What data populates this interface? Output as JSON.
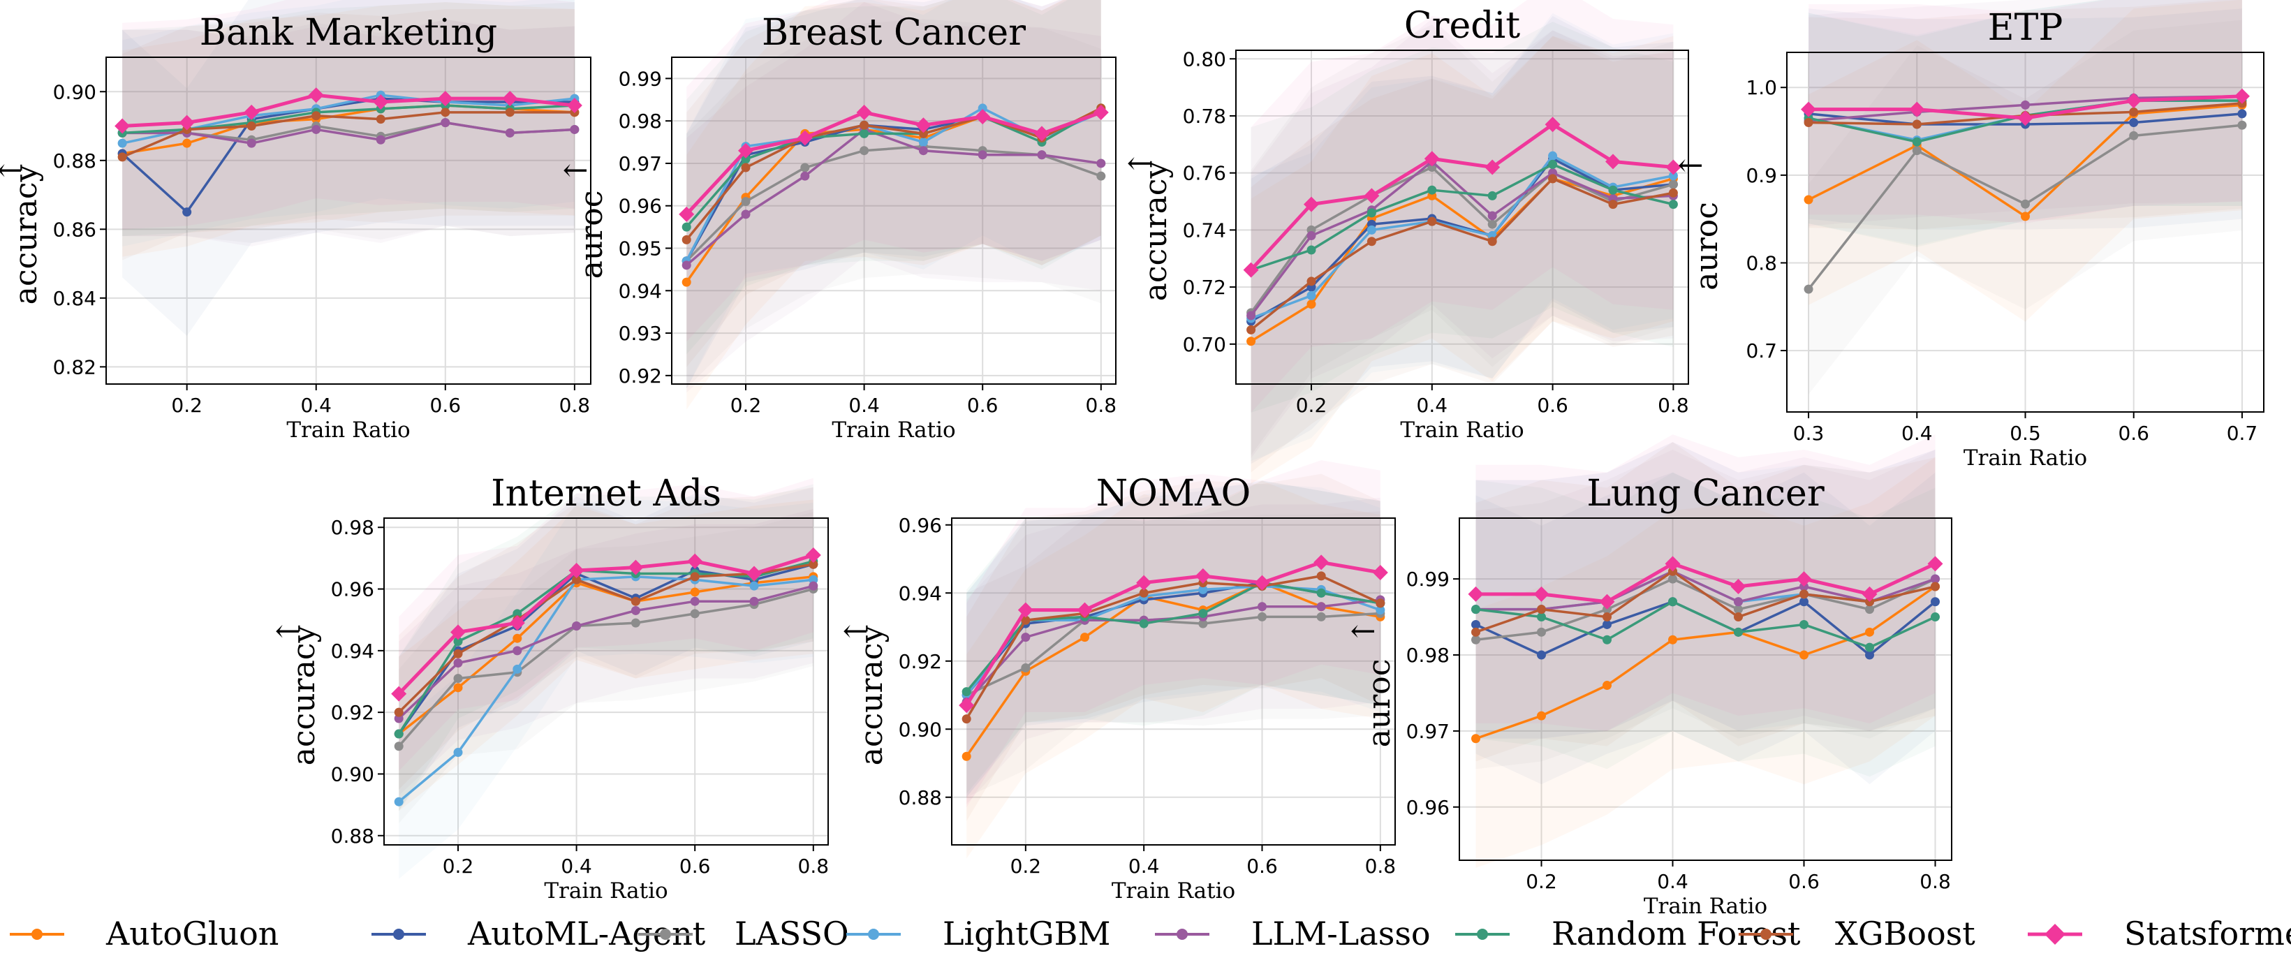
{
  "colors": {
    "AutoGluon": "#ff7f0e",
    "AutoML-Agent": "#3b5ba5",
    "LASSO": "#8c8c8c",
    "LightGBM": "#5aa7dc",
    "LLM-Lasso": "#9a5a9e",
    "Random Forest": "#3a9a7a",
    "XGBoost": "#b85a32",
    "Statsformer": "#f0379b"
  },
  "legend": [
    "AutoGluon",
    "AutoML-Agent",
    "LASSO",
    "LightGBM",
    "LLM-Lasso",
    "Random Forest",
    "XGBoost",
    "Statsformer"
  ],
  "chart_data": [
    {
      "type": "line",
      "title": "Bank Marketing",
      "xlabel": "Train Ratio",
      "ylabel": "accuracy",
      "arrow": "↑",
      "xlim": [
        0.075,
        0.825
      ],
      "ylim": [
        0.815,
        0.91
      ],
      "xticks": [
        0.2,
        0.4,
        0.6,
        0.8
      ],
      "xtick_labels": [
        "0.2",
        "0.4",
        "0.6",
        "0.8"
      ],
      "yticks": [
        0.82,
        0.84,
        0.86,
        0.88,
        0.9
      ],
      "ytick_labels": [
        "0.82",
        "0.84",
        "0.86",
        "0.88",
        "0.90"
      ],
      "x": [
        0.1,
        0.2,
        0.3,
        0.4,
        0.5,
        0.6,
        0.7,
        0.8
      ],
      "series": [
        {
          "name": "AutoGluon",
          "values": [
            0.882,
            0.885,
            0.891,
            0.892,
            0.895,
            0.896,
            0.895,
            0.894
          ]
        },
        {
          "name": "AutoML-Agent",
          "values": [
            0.882,
            0.865,
            0.892,
            0.895,
            0.898,
            0.897,
            0.897,
            0.897
          ]
        },
        {
          "name": "LASSO",
          "values": [
            0.888,
            0.888,
            0.886,
            0.89,
            0.887,
            0.891,
            0.888,
            0.889
          ]
        },
        {
          "name": "LightGBM",
          "values": [
            0.885,
            0.889,
            0.893,
            0.895,
            0.899,
            0.897,
            0.896,
            0.898
          ]
        },
        {
          "name": "LLM-Lasso",
          "values": [
            0.888,
            0.888,
            0.885,
            0.889,
            0.886,
            0.891,
            0.888,
            0.889
          ]
        },
        {
          "name": "Random Forest",
          "values": [
            0.888,
            0.889,
            0.891,
            0.894,
            0.895,
            0.896,
            0.895,
            0.896
          ]
        },
        {
          "name": "XGBoost",
          "values": [
            0.881,
            0.889,
            0.89,
            0.893,
            0.892,
            0.894,
            0.894,
            0.894
          ]
        },
        {
          "name": "Statsformer",
          "values": [
            0.89,
            0.891,
            0.894,
            0.899,
            0.897,
            0.898,
            0.898,
            0.896
          ]
        }
      ]
    },
    {
      "type": "line",
      "title": "Breast Cancer",
      "xlabel": "Train Ratio",
      "ylabel": "auroc",
      "arrow": "↑",
      "xlim": [
        0.075,
        0.825
      ],
      "ylim": [
        0.918,
        0.995
      ],
      "xticks": [
        0.2,
        0.4,
        0.6,
        0.8
      ],
      "xtick_labels": [
        "0.2",
        "0.4",
        "0.6",
        "0.8"
      ],
      "yticks": [
        0.92,
        0.93,
        0.94,
        0.95,
        0.96,
        0.97,
        0.98,
        0.99
      ],
      "ytick_labels": [
        "0.92",
        "0.93",
        "0.94",
        "0.95",
        "0.96",
        "0.97",
        "0.98",
        "0.99"
      ],
      "x": [
        0.1,
        0.2,
        0.3,
        0.4,
        0.5,
        0.6,
        0.7,
        0.8
      ],
      "series": [
        {
          "name": "AutoGluon",
          "values": [
            0.942,
            0.962,
            0.977,
            0.978,
            0.976,
            0.981,
            0.976,
            0.983
          ]
        },
        {
          "name": "AutoML-Agent",
          "values": [
            0.947,
            0.972,
            0.975,
            0.979,
            0.978,
            0.981,
            0.977,
            0.982
          ]
        },
        {
          "name": "LASSO",
          "values": [
            0.947,
            0.961,
            0.969,
            0.973,
            0.974,
            0.973,
            0.972,
            0.967
          ]
        },
        {
          "name": "LightGBM",
          "values": [
            0.947,
            0.974,
            0.976,
            0.979,
            0.975,
            0.983,
            0.976,
            0.982
          ]
        },
        {
          "name": "LLM-Lasso",
          "values": [
            0.946,
            0.958,
            0.967,
            0.978,
            0.973,
            0.972,
            0.972,
            0.97
          ]
        },
        {
          "name": "Random Forest",
          "values": [
            0.955,
            0.971,
            0.976,
            0.977,
            0.977,
            0.981,
            0.975,
            0.983
          ]
        },
        {
          "name": "XGBoost",
          "values": [
            0.952,
            0.969,
            0.976,
            0.979,
            0.977,
            0.981,
            0.976,
            0.983
          ]
        },
        {
          "name": "Statsformer",
          "values": [
            0.958,
            0.973,
            0.976,
            0.982,
            0.979,
            0.981,
            0.977,
            0.982
          ]
        }
      ]
    },
    {
      "type": "line",
      "title": "Credit",
      "xlabel": "Train Ratio",
      "ylabel": "accuracy",
      "arrow": "↑",
      "xlim": [
        0.075,
        0.825
      ],
      "ylim": [
        0.686,
        0.803
      ],
      "xticks": [
        0.2,
        0.4,
        0.6,
        0.8
      ],
      "xtick_labels": [
        "0.2",
        "0.4",
        "0.6",
        "0.8"
      ],
      "yticks": [
        0.7,
        0.72,
        0.74,
        0.76,
        0.78,
        0.8
      ],
      "ytick_labels": [
        "0.70",
        "0.72",
        "0.74",
        "0.76",
        "0.78",
        "0.80"
      ],
      "x": [
        0.1,
        0.2,
        0.3,
        0.4,
        0.5,
        0.6,
        0.7,
        0.8
      ],
      "series": [
        {
          "name": "AutoGluon",
          "values": [
            0.701,
            0.714,
            0.744,
            0.752,
            0.737,
            0.758,
            0.752,
            0.758
          ]
        },
        {
          "name": "AutoML-Agent",
          "values": [
            0.708,
            0.72,
            0.742,
            0.744,
            0.738,
            0.765,
            0.754,
            0.756
          ]
        },
        {
          "name": "LASSO",
          "values": [
            0.711,
            0.74,
            0.752,
            0.762,
            0.742,
            0.76,
            0.75,
            0.756
          ]
        },
        {
          "name": "LightGBM",
          "values": [
            0.709,
            0.717,
            0.74,
            0.743,
            0.738,
            0.766,
            0.755,
            0.759
          ]
        },
        {
          "name": "LLM-Lasso",
          "values": [
            0.71,
            0.738,
            0.747,
            0.764,
            0.745,
            0.76,
            0.751,
            0.752
          ]
        },
        {
          "name": "Random Forest",
          "values": [
            0.726,
            0.733,
            0.746,
            0.754,
            0.752,
            0.763,
            0.754,
            0.749
          ]
        },
        {
          "name": "XGBoost",
          "values": [
            0.705,
            0.722,
            0.736,
            0.743,
            0.736,
            0.758,
            0.749,
            0.753
          ]
        },
        {
          "name": "Statsformer",
          "values": [
            0.726,
            0.749,
            0.752,
            0.765,
            0.762,
            0.777,
            0.764,
            0.762
          ]
        }
      ]
    },
    {
      "type": "line",
      "title": "ETP",
      "xlabel": "Train Ratio",
      "ylabel": "auroc",
      "arrow": "↑",
      "xlim": [
        0.28,
        0.72
      ],
      "ylim": [
        0.63,
        1.04
      ],
      "xticks": [
        0.3,
        0.4,
        0.5,
        0.6,
        0.7
      ],
      "xtick_labels": [
        "0.3",
        "0.4",
        "0.5",
        "0.6",
        "0.7"
      ],
      "yticks": [
        0.7,
        0.8,
        0.9,
        1.0
      ],
      "ytick_labels": [
        "0.7",
        "0.8",
        "0.9",
        "1.0"
      ],
      "x": [
        0.3,
        0.4,
        0.5,
        0.6,
        0.7
      ],
      "series": [
        {
          "name": "AutoGluon",
          "values": [
            0.872,
            0.934,
            0.853,
            0.97,
            0.98
          ]
        },
        {
          "name": "AutoML-Agent",
          "values": [
            0.97,
            0.958,
            0.958,
            0.96,
            0.97
          ]
        },
        {
          "name": "LASSO",
          "values": [
            0.77,
            0.928,
            0.867,
            0.945,
            0.957
          ]
        },
        {
          "name": "LightGBM",
          "values": [
            0.965,
            0.94,
            0.968,
            0.985,
            0.985
          ]
        },
        {
          "name": "LLM-Lasso",
          "values": [
            0.962,
            0.972,
            0.98,
            0.988,
            0.99
          ]
        },
        {
          "name": "Random Forest",
          "values": [
            0.965,
            0.938,
            0.968,
            0.985,
            0.985
          ]
        },
        {
          "name": "XGBoost",
          "values": [
            0.96,
            0.958,
            0.968,
            0.972,
            0.982
          ]
        },
        {
          "name": "Statsformer",
          "values": [
            0.975,
            0.975,
            0.965,
            0.985,
            0.99
          ]
        }
      ]
    },
    {
      "type": "line",
      "title": "Internet Ads",
      "xlabel": "Train Ratio",
      "ylabel": "accuracy",
      "arrow": "↑",
      "xlim": [
        0.075,
        0.825
      ],
      "ylim": [
        0.877,
        0.983
      ],
      "xticks": [
        0.2,
        0.4,
        0.6,
        0.8
      ],
      "xtick_labels": [
        "0.2",
        "0.4",
        "0.6",
        "0.8"
      ],
      "yticks": [
        0.88,
        0.9,
        0.92,
        0.94,
        0.96,
        0.98
      ],
      "ytick_labels": [
        "0.88",
        "0.90",
        "0.92",
        "0.94",
        "0.96",
        "0.98"
      ],
      "x": [
        0.1,
        0.2,
        0.3,
        0.4,
        0.5,
        0.6,
        0.7,
        0.8
      ],
      "series": [
        {
          "name": "AutoGluon",
          "values": [
            0.913,
            0.928,
            0.944,
            0.962,
            0.956,
            0.959,
            0.962,
            0.964
          ]
        },
        {
          "name": "AutoML-Agent",
          "values": [
            0.913,
            0.94,
            0.948,
            0.965,
            0.957,
            0.966,
            0.963,
            0.968
          ]
        },
        {
          "name": "LASSO",
          "values": [
            0.909,
            0.931,
            0.933,
            0.948,
            0.949,
            0.952,
            0.955,
            0.96
          ]
        },
        {
          "name": "LightGBM",
          "values": [
            0.891,
            0.907,
            0.934,
            0.963,
            0.964,
            0.963,
            0.961,
            0.963
          ]
        },
        {
          "name": "LLM-Lasso",
          "values": [
            0.918,
            0.936,
            0.94,
            0.948,
            0.953,
            0.956,
            0.956,
            0.961
          ]
        },
        {
          "name": "Random Forest",
          "values": [
            0.913,
            0.943,
            0.952,
            0.966,
            0.965,
            0.965,
            0.964,
            0.969
          ]
        },
        {
          "name": "XGBoost",
          "values": [
            0.92,
            0.939,
            0.95,
            0.963,
            0.956,
            0.964,
            0.965,
            0.968
          ]
        },
        {
          "name": "Statsformer",
          "values": [
            0.926,
            0.946,
            0.949,
            0.966,
            0.967,
            0.969,
            0.965,
            0.971
          ]
        }
      ]
    },
    {
      "type": "line",
      "title": "NOMAO",
      "xlabel": "Train Ratio",
      "ylabel": "accuracy",
      "arrow": "↑",
      "xlim": [
        0.075,
        0.825
      ],
      "ylim": [
        0.866,
        0.962
      ],
      "xticks": [
        0.2,
        0.4,
        0.6,
        0.8
      ],
      "xtick_labels": [
        "0.2",
        "0.4",
        "0.6",
        "0.8"
      ],
      "yticks": [
        0.88,
        0.9,
        0.92,
        0.94,
        0.96
      ],
      "ytick_labels": [
        "0.88",
        "0.90",
        "0.92",
        "0.94",
        "0.96"
      ],
      "x": [
        0.1,
        0.2,
        0.3,
        0.4,
        0.5,
        0.6,
        0.7,
        0.8
      ],
      "series": [
        {
          "name": "AutoGluon",
          "values": [
            0.892,
            0.917,
            0.927,
            0.939,
            0.935,
            0.943,
            0.936,
            0.933
          ]
        },
        {
          "name": "AutoML-Agent",
          "values": [
            0.91,
            0.931,
            0.933,
            0.938,
            0.94,
            0.943,
            0.94,
            0.937
          ]
        },
        {
          "name": "LASSO",
          "values": [
            0.91,
            0.918,
            0.932,
            0.932,
            0.931,
            0.933,
            0.933,
            0.934
          ]
        },
        {
          "name": "LightGBM",
          "values": [
            0.91,
            0.932,
            0.932,
            0.939,
            0.941,
            0.942,
            0.941,
            0.935
          ]
        },
        {
          "name": "LLM-Lasso",
          "values": [
            0.908,
            0.927,
            0.932,
            0.932,
            0.933,
            0.936,
            0.936,
            0.938
          ]
        },
        {
          "name": "Random Forest",
          "values": [
            0.911,
            0.932,
            0.933,
            0.931,
            0.934,
            0.943,
            0.94,
            0.937
          ]
        },
        {
          "name": "XGBoost",
          "values": [
            0.903,
            0.932,
            0.934,
            0.94,
            0.943,
            0.942,
            0.945,
            0.937
          ]
        },
        {
          "name": "Statsformer",
          "values": [
            0.907,
            0.935,
            0.935,
            0.943,
            0.945,
            0.943,
            0.949,
            0.946
          ]
        }
      ]
    },
    {
      "type": "line",
      "title": "Lung Cancer",
      "xlabel": "Train Ratio",
      "ylabel": "auroc",
      "arrow": "↑",
      "xlim": [
        0.075,
        0.825
      ],
      "ylim": [
        0.953,
        0.998
      ],
      "xticks": [
        0.2,
        0.4,
        0.6,
        0.8
      ],
      "xtick_labels": [
        "0.2",
        "0.4",
        "0.6",
        "0.8"
      ],
      "yticks": [
        0.96,
        0.97,
        0.98,
        0.99
      ],
      "ytick_labels": [
        "0.96",
        "0.97",
        "0.98",
        "0.99"
      ],
      "x": [
        0.1,
        0.2,
        0.3,
        0.4,
        0.5,
        0.6,
        0.7,
        0.8
      ],
      "series": [
        {
          "name": "AutoGluon",
          "values": [
            0.969,
            0.972,
            0.976,
            0.982,
            0.983,
            0.98,
            0.983,
            0.989
          ]
        },
        {
          "name": "AutoML-Agent",
          "values": [
            0.984,
            0.98,
            0.984,
            0.987,
            0.983,
            0.987,
            0.98,
            0.987
          ]
        },
        {
          "name": "LASSO",
          "values": [
            0.982,
            0.983,
            0.986,
            0.99,
            0.986,
            0.988,
            0.986,
            0.99
          ]
        },
        {
          "name": "LightGBM",
          "values": [
            0.986,
            0.986,
            0.987,
            0.991,
            0.987,
            0.988,
            0.987,
            0.99
          ]
        },
        {
          "name": "LLM-Lasso",
          "values": [
            0.986,
            0.986,
            0.987,
            0.991,
            0.987,
            0.989,
            0.987,
            0.99
          ]
        },
        {
          "name": "Random Forest",
          "values": [
            0.986,
            0.985,
            0.982,
            0.987,
            0.983,
            0.984,
            0.981,
            0.985
          ]
        },
        {
          "name": "XGBoost",
          "values": [
            0.983,
            0.986,
            0.985,
            0.991,
            0.985,
            0.988,
            0.987,
            0.989
          ]
        },
        {
          "name": "Statsformer",
          "values": [
            0.988,
            0.988,
            0.987,
            0.992,
            0.989,
            0.99,
            0.988,
            0.992
          ]
        }
      ]
    }
  ]
}
